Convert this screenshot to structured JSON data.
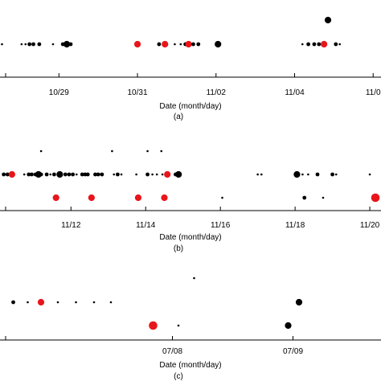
{
  "chart_data": [
    {
      "type": "scatter",
      "xlabel": "Date (month/day)",
      "caption": "(a)",
      "x_ticks": [
        "10/29",
        "10/31",
        "11/02",
        "11/04",
        "11/0"
      ],
      "x_tick_values": [
        29,
        31,
        33,
        35,
        37
      ],
      "xlim": [
        27.5,
        37.2
      ],
      "rows": 3,
      "points": [
        {
          "x": 27.55,
          "row": 2,
          "size": "tiny",
          "color": "#000000"
        },
        {
          "x": 28.05,
          "row": 2,
          "size": "tiny",
          "color": "#000000"
        },
        {
          "x": 28.15,
          "row": 2,
          "size": "tiny",
          "color": "#000000"
        },
        {
          "x": 28.25,
          "row": 2,
          "size": "small",
          "color": "#000000"
        },
        {
          "x": 28.35,
          "row": 2,
          "size": "small",
          "color": "#000000"
        },
        {
          "x": 28.5,
          "row": 2,
          "size": "small",
          "color": "#000000"
        },
        {
          "x": 28.85,
          "row": 2,
          "size": "tiny",
          "color": "#000000"
        },
        {
          "x": 29.1,
          "row": 2,
          "size": "small",
          "color": "#000000"
        },
        {
          "x": 29.2,
          "row": 2,
          "size": "medium",
          "color": "#000000"
        },
        {
          "x": 29.3,
          "row": 2,
          "size": "small",
          "color": "#000000"
        },
        {
          "x": 31.0,
          "row": 2,
          "size": "medium",
          "color": "#e8151b"
        },
        {
          "x": 31.55,
          "row": 2,
          "size": "small",
          "color": "#000000"
        },
        {
          "x": 31.7,
          "row": 2,
          "size": "medium",
          "color": "#e8151b"
        },
        {
          "x": 31.95,
          "row": 2,
          "size": "tiny",
          "color": "#000000"
        },
        {
          "x": 32.1,
          "row": 2,
          "size": "tiny",
          "color": "#000000"
        },
        {
          "x": 32.22,
          "row": 2,
          "size": "small",
          "color": "#000000"
        },
        {
          "x": 32.3,
          "row": 2,
          "size": "medium",
          "color": "#e8151b"
        },
        {
          "x": 32.42,
          "row": 2,
          "size": "small",
          "color": "#000000"
        },
        {
          "x": 32.55,
          "row": 2,
          "size": "small",
          "color": "#000000"
        },
        {
          "x": 33.05,
          "row": 2,
          "size": "medium",
          "color": "#000000"
        },
        {
          "x": 35.2,
          "row": 2,
          "size": "tiny",
          "color": "#000000"
        },
        {
          "x": 35.35,
          "row": 2,
          "size": "small",
          "color": "#000000"
        },
        {
          "x": 35.5,
          "row": 2,
          "size": "small",
          "color": "#000000"
        },
        {
          "x": 35.62,
          "row": 2,
          "size": "small",
          "color": "#000000"
        },
        {
          "x": 35.75,
          "row": 2,
          "size": "medium",
          "color": "#e8151b"
        },
        {
          "x": 35.85,
          "row": 1,
          "size": "medium",
          "color": "#000000"
        },
        {
          "x": 36.05,
          "row": 2,
          "size": "small",
          "color": "#000000"
        },
        {
          "x": 36.15,
          "row": 2,
          "size": "tiny",
          "color": "#000000"
        }
      ]
    },
    {
      "type": "scatter",
      "xlabel": "Date (month/day)",
      "caption": "(b)",
      "x_ticks": [
        "11/12",
        "11/14",
        "11/16",
        "11/18",
        "11/20"
      ],
      "x_tick_values": [
        12,
        14,
        16,
        18,
        20
      ],
      "xlim": [
        10.1,
        20.3
      ],
      "rows": 3,
      "points": [
        {
          "x": 10.2,
          "row": 2,
          "size": "small",
          "color": "#000000"
        },
        {
          "x": 10.3,
          "row": 2,
          "size": "small",
          "color": "#000000"
        },
        {
          "x": 10.42,
          "row": 2,
          "size": "medium",
          "color": "#e8151b"
        },
        {
          "x": 10.75,
          "row": 2,
          "size": "tiny",
          "color": "#000000"
        },
        {
          "x": 10.87,
          "row": 2,
          "size": "small",
          "color": "#000000"
        },
        {
          "x": 10.95,
          "row": 2,
          "size": "small",
          "color": "#000000"
        },
        {
          "x": 11.05,
          "row": 2,
          "size": "small",
          "color": "#000000"
        },
        {
          "x": 11.13,
          "row": 2,
          "size": "medium",
          "color": "#000000"
        },
        {
          "x": 11.2,
          "row": 1,
          "size": "tiny",
          "color": "#000000"
        },
        {
          "x": 11.2,
          "row": 2,
          "size": "small",
          "color": "#000000"
        },
        {
          "x": 11.35,
          "row": 2,
          "size": "small",
          "color": "#000000"
        },
        {
          "x": 11.45,
          "row": 2,
          "size": "tiny",
          "color": "#000000"
        },
        {
          "x": 11.55,
          "row": 2,
          "size": "small",
          "color": "#000000"
        },
        {
          "x": 11.6,
          "row": 3,
          "size": "medium",
          "color": "#e8151b"
        },
        {
          "x": 11.7,
          "row": 2,
          "size": "medium",
          "color": "#000000"
        },
        {
          "x": 11.85,
          "row": 2,
          "size": "small",
          "color": "#000000"
        },
        {
          "x": 11.95,
          "row": 2,
          "size": "small",
          "color": "#000000"
        },
        {
          "x": 12.05,
          "row": 2,
          "size": "small",
          "color": "#000000"
        },
        {
          "x": 12.15,
          "row": 2,
          "size": "tiny",
          "color": "#000000"
        },
        {
          "x": 12.3,
          "row": 2,
          "size": "small",
          "color": "#000000"
        },
        {
          "x": 12.38,
          "row": 2,
          "size": "small",
          "color": "#000000"
        },
        {
          "x": 12.45,
          "row": 2,
          "size": "small",
          "color": "#000000"
        },
        {
          "x": 12.55,
          "row": 3,
          "size": "medium",
          "color": "#e8151b"
        },
        {
          "x": 12.65,
          "row": 2,
          "size": "small",
          "color": "#000000"
        },
        {
          "x": 12.73,
          "row": 2,
          "size": "small",
          "color": "#000000"
        },
        {
          "x": 12.83,
          "row": 2,
          "size": "small",
          "color": "#000000"
        },
        {
          "x": 13.1,
          "row": 1,
          "size": "tiny",
          "color": "#000000"
        },
        {
          "x": 13.15,
          "row": 2,
          "size": "tiny",
          "color": "#000000"
        },
        {
          "x": 13.25,
          "row": 2,
          "size": "small",
          "color": "#000000"
        },
        {
          "x": 13.35,
          "row": 2,
          "size": "tiny",
          "color": "#000000"
        },
        {
          "x": 13.75,
          "row": 2,
          "size": "tiny",
          "color": "#000000"
        },
        {
          "x": 13.8,
          "row": 3,
          "size": "medium",
          "color": "#e8151b"
        },
        {
          "x": 14.05,
          "row": 1,
          "size": "tiny",
          "color": "#000000"
        },
        {
          "x": 14.05,
          "row": 2,
          "size": "small",
          "color": "#000000"
        },
        {
          "x": 14.18,
          "row": 2,
          "size": "tiny",
          "color": "#000000"
        },
        {
          "x": 14.3,
          "row": 2,
          "size": "tiny",
          "color": "#000000"
        },
        {
          "x": 14.42,
          "row": 1,
          "size": "tiny",
          "color": "#000000"
        },
        {
          "x": 14.45,
          "row": 2,
          "size": "tiny",
          "color": "#000000"
        },
        {
          "x": 14.5,
          "row": 3,
          "size": "medium",
          "color": "#e8151b"
        },
        {
          "x": 14.58,
          "row": 2,
          "size": "medium",
          "color": "#e8151b"
        },
        {
          "x": 14.8,
          "row": 2,
          "size": "small",
          "color": "#000000"
        },
        {
          "x": 14.88,
          "row": 2,
          "size": "medium",
          "color": "#000000"
        },
        {
          "x": 16.05,
          "row": 3,
          "size": "tiny",
          "color": "#000000"
        },
        {
          "x": 17.0,
          "row": 2,
          "size": "tiny",
          "color": "#000000"
        },
        {
          "x": 17.1,
          "row": 2,
          "size": "tiny",
          "color": "#000000"
        },
        {
          "x": 18.05,
          "row": 2,
          "size": "medium",
          "color": "#000000"
        },
        {
          "x": 18.2,
          "row": 2,
          "size": "tiny",
          "color": "#000000"
        },
        {
          "x": 18.25,
          "row": 3,
          "size": "small",
          "color": "#000000"
        },
        {
          "x": 18.35,
          "row": 2,
          "size": "tiny",
          "color": "#000000"
        },
        {
          "x": 18.6,
          "row": 2,
          "size": "small",
          "color": "#000000"
        },
        {
          "x": 18.75,
          "row": 3,
          "size": "tiny",
          "color": "#000000"
        },
        {
          "x": 19.0,
          "row": 2,
          "size": "small",
          "color": "#000000"
        },
        {
          "x": 19.1,
          "row": 2,
          "size": "tiny",
          "color": "#000000"
        },
        {
          "x": 20.0,
          "row": 2,
          "size": "tiny",
          "color": "#000000"
        },
        {
          "x": 20.15,
          "row": 3,
          "size": "large",
          "color": "#e8151b"
        }
      ]
    },
    {
      "type": "scatter",
      "xlabel": "Date (month/day)",
      "caption": "(c)",
      "x_ticks": [
        "07/08",
        "07/09"
      ],
      "x_tick_values": [
        8,
        9
      ],
      "xlim": [
        6.57,
        9.73
      ],
      "rows": 3,
      "points": [
        {
          "x": 6.68,
          "row": 2,
          "size": "small",
          "color": "#000000"
        },
        {
          "x": 6.8,
          "row": 2,
          "size": "tiny",
          "color": "#000000"
        },
        {
          "x": 6.91,
          "row": 2,
          "size": "medium",
          "color": "#e8151b"
        },
        {
          "x": 7.05,
          "row": 2,
          "size": "tiny",
          "color": "#000000"
        },
        {
          "x": 7.2,
          "row": 2,
          "size": "tiny",
          "color": "#000000"
        },
        {
          "x": 7.35,
          "row": 2,
          "size": "tiny",
          "color": "#000000"
        },
        {
          "x": 7.49,
          "row": 2,
          "size": "tiny",
          "color": "#000000"
        },
        {
          "x": 7.84,
          "row": 3,
          "size": "large",
          "color": "#e8151b"
        },
        {
          "x": 8.05,
          "row": 3,
          "size": "tiny",
          "color": "#000000"
        },
        {
          "x": 8.18,
          "row": 1,
          "size": "tiny",
          "color": "#000000"
        },
        {
          "x": 8.96,
          "row": 3,
          "size": "medium",
          "color": "#000000"
        },
        {
          "x": 9.05,
          "row": 2,
          "size": "medium",
          "color": "#000000"
        }
      ]
    }
  ]
}
